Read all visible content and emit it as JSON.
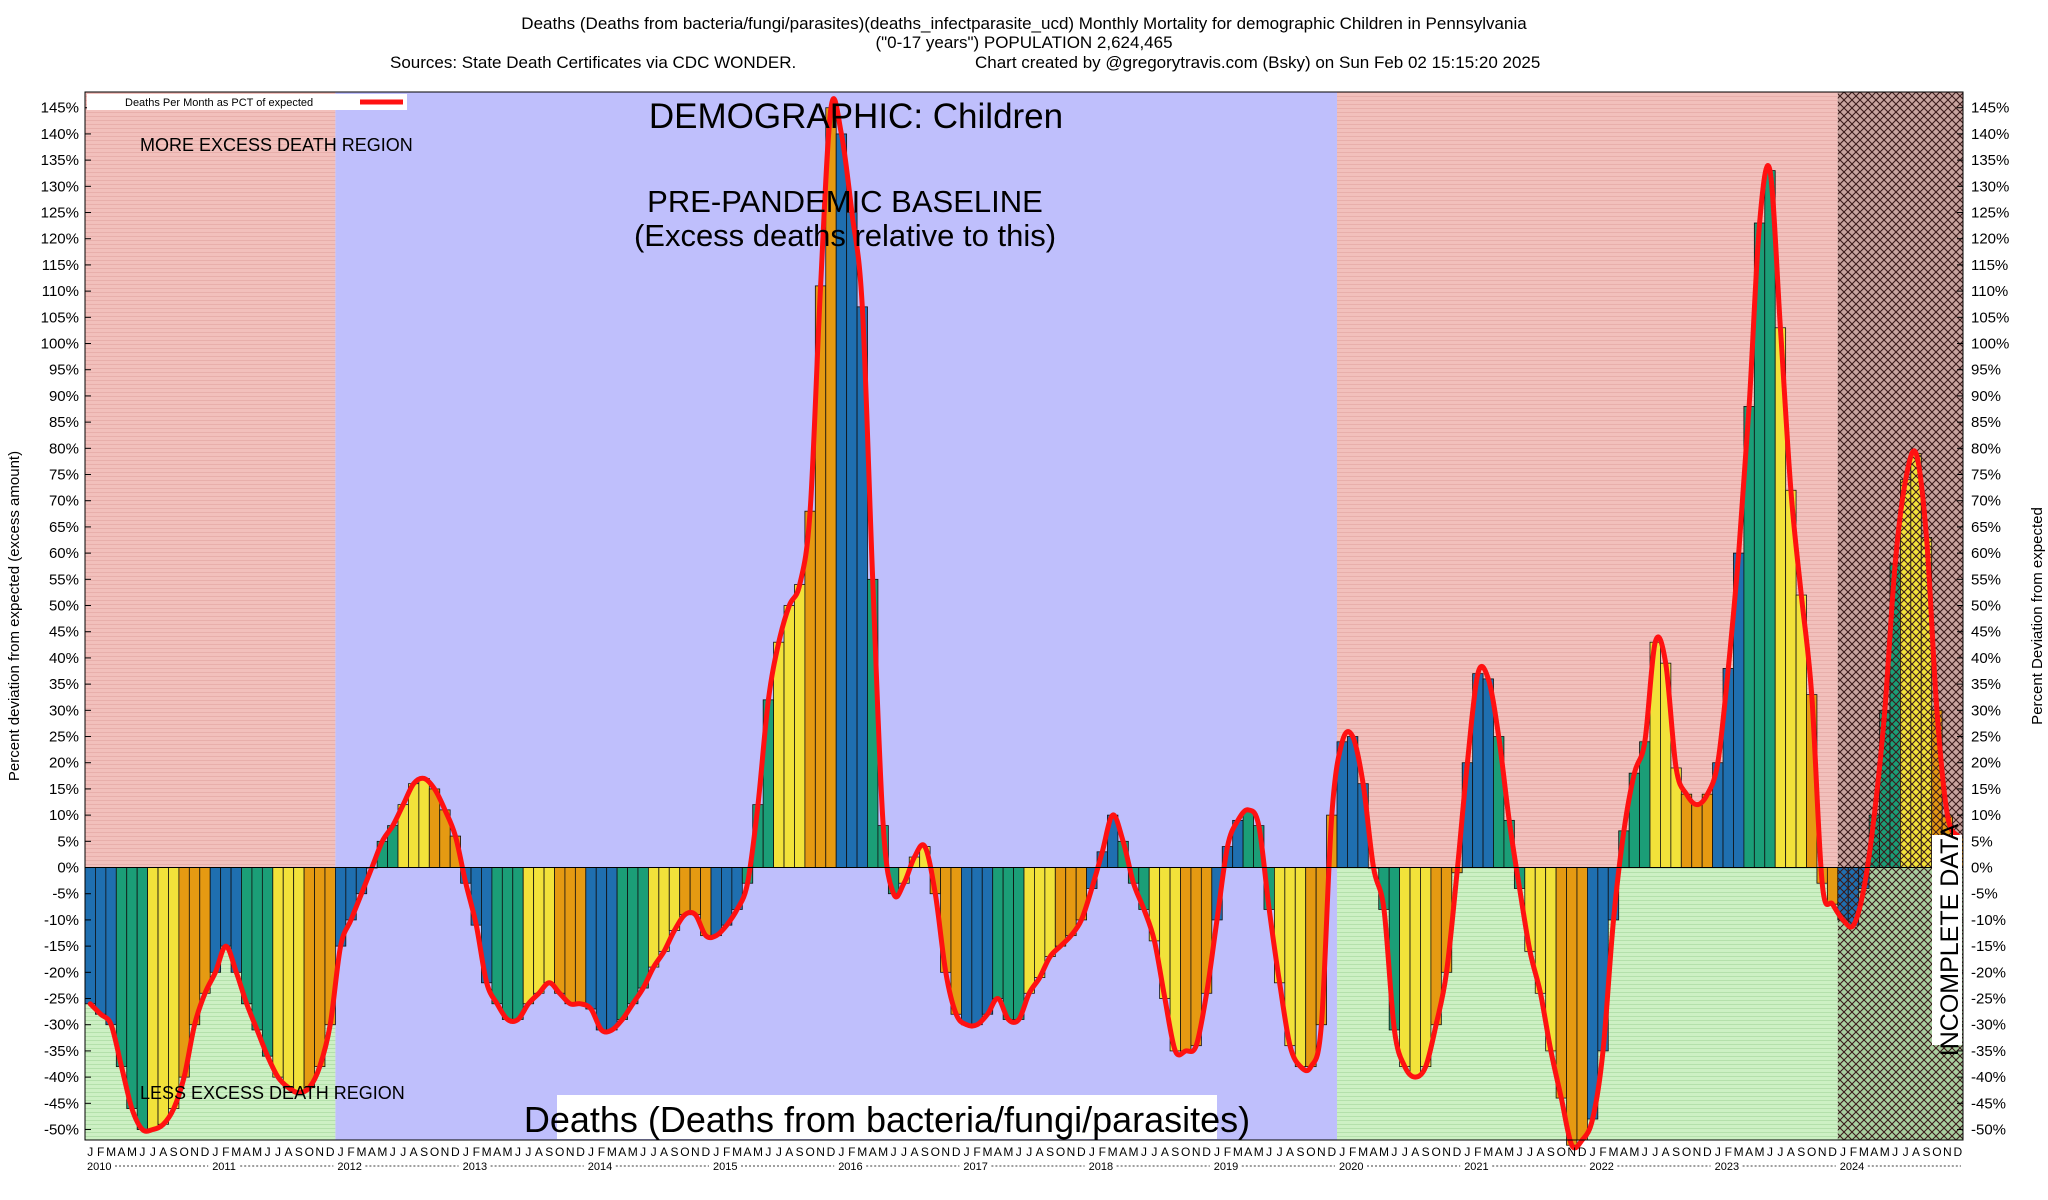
{
  "title": {
    "line1": "Deaths (Deaths from bacteria/fungi/parasites)(deaths_infectparasite_ucd) Monthly Mortality for demographic Children in Pennsylvania",
    "line2": "(\"0-17 years\") POPULATION 2,624,465",
    "line3": "Sources: State Death Certificates via CDC WONDER.",
    "line4": "Chart created by @gregorytravis.com (Bsky) on Sun Feb 02 15:15:20 2025"
  },
  "annotations": {
    "demographic": "DEMOGRAPHIC: Children",
    "baseline1": "PRE-PANDEMIC BASELINE",
    "baseline2": "(Excess deaths relative to this)",
    "more_region": "MORE EXCESS DEATH REGION",
    "less_region": "LESS EXCESS DEATH REGION",
    "bottom_title": "Deaths (Deaths from bacteria/fungi/parasites)",
    "incomplete": "INCOMPLETE DATA"
  },
  "colors": {
    "excess_region": "#f2c0bc",
    "deficit_region": "#cdf0c4",
    "baseline_region": "#bfbffc",
    "line": "#ff1111",
    "bar_palette": [
      "#1f6fb0",
      "#1b9e77",
      "#f2e23a",
      "#e59a12"
    ]
  },
  "chart_data": {
    "type": "bar",
    "title": "Deaths (Deaths from bacteria/fungi/parasites)",
    "legend": "Deaths Per Month as PCT of expected",
    "legend_position": "top-left",
    "ylabel_left": "Percent deviation from expected (excess amount)",
    "ylabel_right": "Percent Deviation from expected",
    "ylim": [
      -52,
      148
    ],
    "yticks": [
      "145%",
      "140%",
      "135%",
      "130%",
      "125%",
      "120%",
      "115%",
      "110%",
      "105%",
      "100%",
      "95%",
      "90%",
      "85%",
      "80%",
      "75%",
      "70%",
      "65%",
      "60%",
      "55%",
      "50%",
      "45%",
      "40%",
      "35%",
      "30%",
      "25%",
      "20%",
      "15%",
      "10%",
      "5%",
      "0%",
      "-5%",
      "-10%",
      "-15%",
      "-20%",
      "-25%",
      "-30%",
      "-35%",
      "-40%",
      "-45%",
      "-50%"
    ],
    "years": [
      "2010",
      "2011",
      "2012",
      "2013",
      "2014",
      "2015",
      "2016",
      "2017",
      "2018",
      "2019",
      "2020",
      "2021",
      "2022",
      "2023",
      "2024"
    ],
    "month_letters": [
      "J",
      "F",
      "M",
      "A",
      "M",
      "J",
      "J",
      "A",
      "S",
      "O",
      "N",
      "D"
    ],
    "baseline_period": [
      "2012-01",
      "2019-12"
    ],
    "incomplete_from": "2024-01",
    "values": [
      -26,
      -28,
      -30,
      -38,
      -46,
      -50,
      -50,
      -49,
      -46,
      -40,
      -30,
      -24,
      -20,
      -15,
      -20,
      -26,
      -31,
      -36,
      -40,
      -42,
      -43,
      -42,
      -38,
      -30,
      -15,
      -10,
      -5,
      0,
      5,
      8,
      12,
      16,
      17,
      15,
      11,
      6,
      -3,
      -11,
      -22,
      -26,
      -29,
      -29,
      -26,
      -24,
      -22,
      -24,
      -26,
      -26,
      -27,
      -31,
      -31,
      -29,
      -26,
      -23,
      -19,
      -16,
      -12,
      -9,
      -9,
      -13,
      -13,
      -11,
      -8,
      -3,
      12,
      32,
      43,
      50,
      54,
      68,
      111,
      145,
      140,
      125,
      107,
      55,
      8,
      -5,
      -3,
      2,
      4,
      -5,
      -20,
      -28,
      -30,
      -30,
      -28,
      -25,
      -29,
      -29,
      -24,
      -21,
      -17,
      -15,
      -13,
      -10,
      -4,
      3,
      10,
      5,
      -3,
      -8,
      -14,
      -25,
      -35,
      -35,
      -34,
      -24,
      -10,
      4,
      9,
      11,
      8,
      -8,
      -22,
      -34,
      -38,
      -38,
      -30,
      10,
      24,
      25,
      16,
      0,
      -8,
      -31,
      -38,
      -40,
      -38,
      -30,
      -20,
      -1,
      20,
      37,
      36,
      25,
      9,
      -4,
      -16,
      -24,
      -35,
      -44,
      -53,
      -52,
      -48,
      -35,
      -10,
      7,
      18,
      24,
      43,
      39,
      19,
      14,
      12,
      14,
      20,
      38,
      60,
      88,
      123,
      133,
      103,
      72,
      52,
      33,
      -3,
      -7,
      -10,
      -11,
      -4,
      10,
      30,
      58,
      74,
      79,
      63,
      30,
      10,
      6
    ]
  }
}
